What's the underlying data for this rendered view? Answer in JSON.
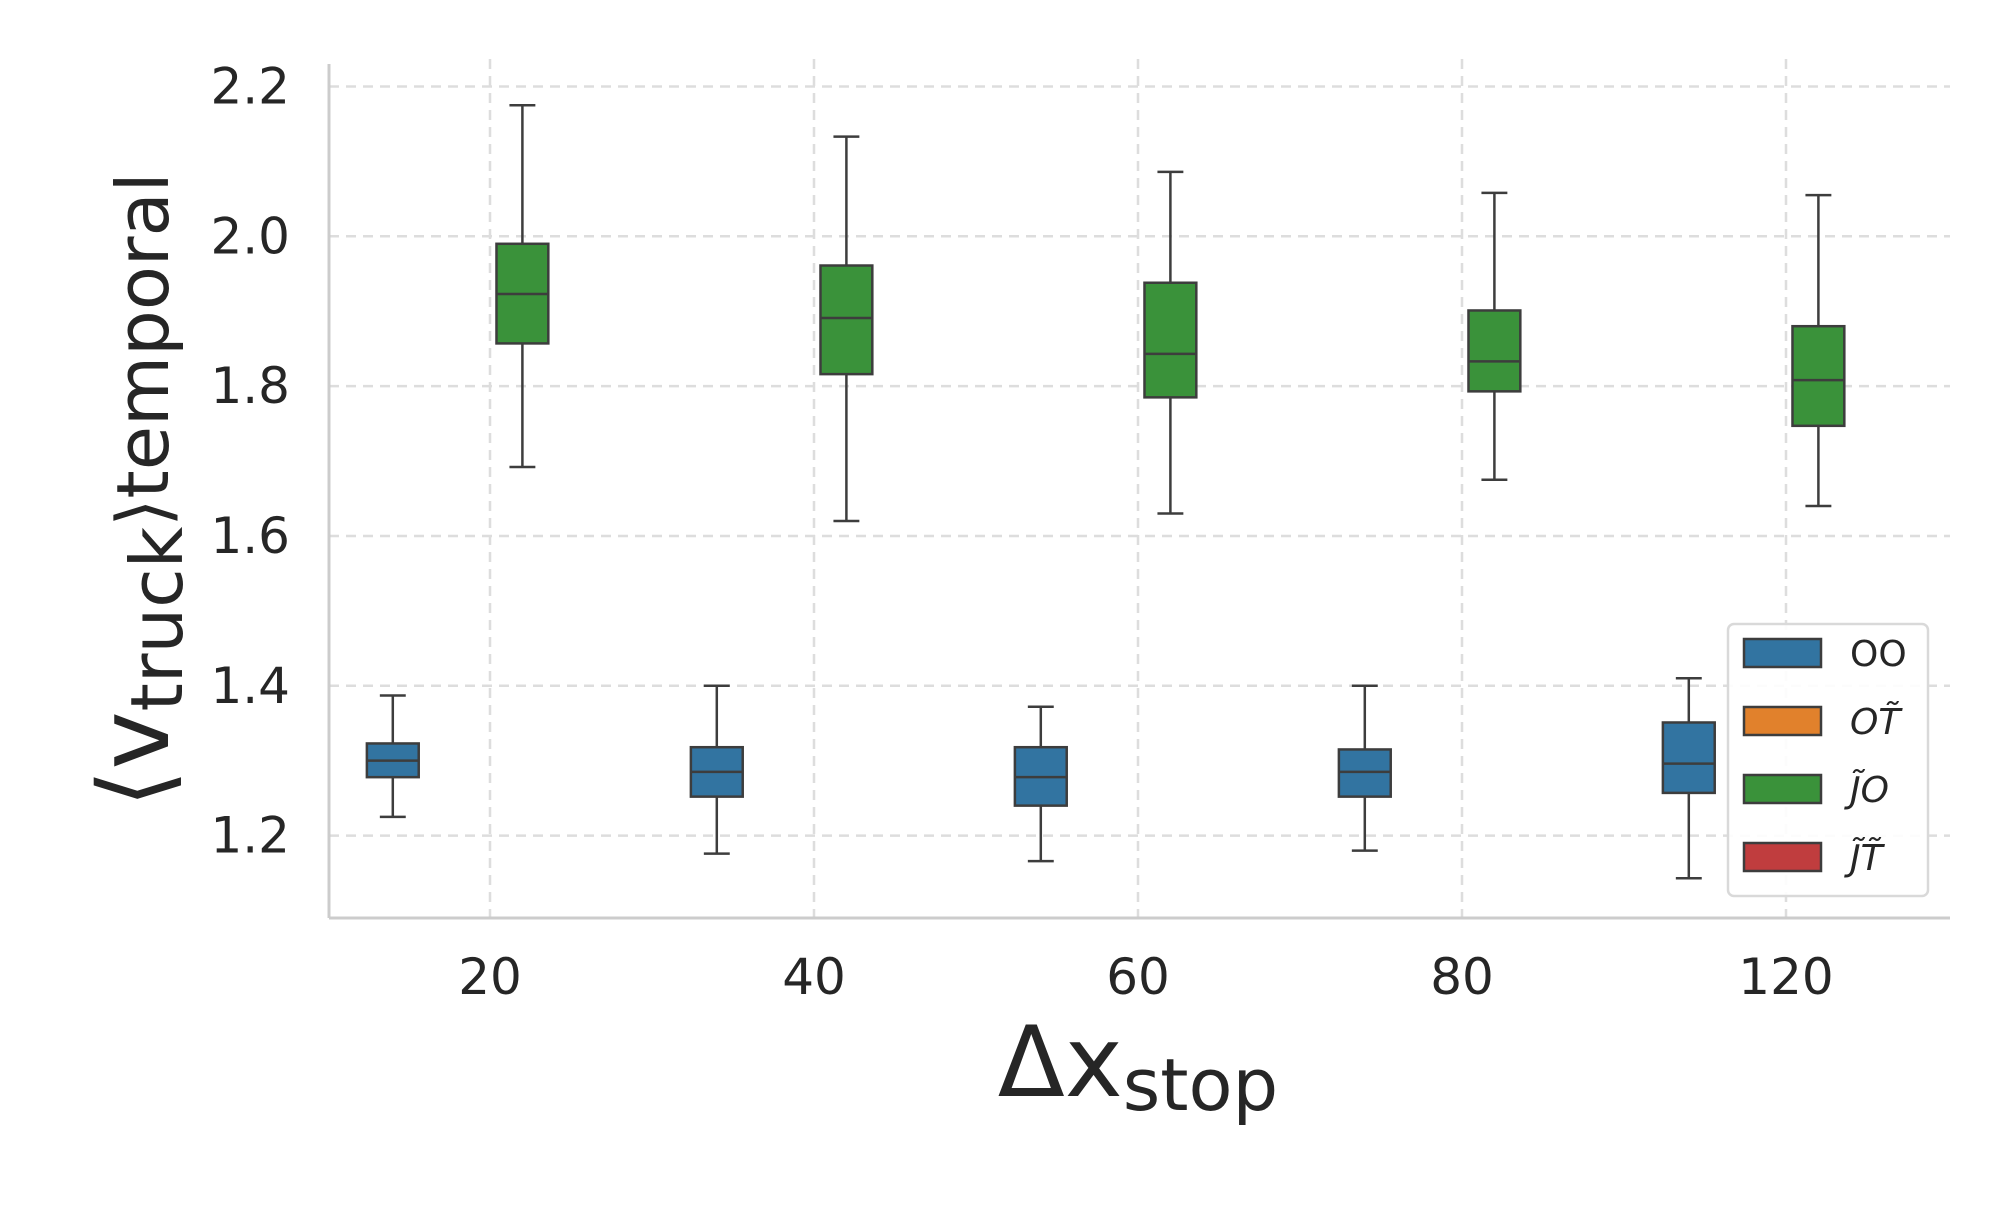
{
  "chart_data": {
    "type": "box",
    "title": "",
    "xlabel": {
      "main": "Δx",
      "subscript": "stop"
    },
    "ylabel": {
      "main": "⟨v",
      "subscript": "truck",
      "suffix": "⟩temporal"
    },
    "categories": [
      "20",
      "40",
      "60",
      "80",
      "120"
    ],
    "ylim": [
      1.09,
      2.23
    ],
    "yticks": [
      1.2,
      1.4,
      1.6,
      1.8,
      2.0,
      2.2
    ],
    "ytick_labels": [
      "1.2",
      "1.4",
      "1.6",
      "1.8",
      "2.0",
      "2.2"
    ],
    "grid": true,
    "legend_position": "bottom-right",
    "legend": [
      {
        "label": "OO",
        "color": "#3274a1"
      },
      {
        "label": "OT̃",
        "color": "#e1812c"
      },
      {
        "label": "J̃O",
        "color": "#3a923a"
      },
      {
        "label": "J̃T̃",
        "color": "#c03d3e"
      }
    ],
    "series": [
      {
        "name": "OO",
        "color": "#3274a1",
        "boxes": [
          {
            "whisker_low": 1.225,
            "q1": 1.278,
            "median": 1.3,
            "q3": 1.323,
            "whisker_high": 1.387
          },
          {
            "whisker_low": 1.176,
            "q1": 1.252,
            "median": 1.285,
            "q3": 1.318,
            "whisker_high": 1.4
          },
          {
            "whisker_low": 1.166,
            "q1": 1.24,
            "median": 1.278,
            "q3": 1.318,
            "whisker_high": 1.372
          },
          {
            "whisker_low": 1.18,
            "q1": 1.252,
            "median": 1.285,
            "q3": 1.315,
            "whisker_high": 1.4
          },
          {
            "whisker_low": 1.143,
            "q1": 1.257,
            "median": 1.296,
            "q3": 1.351,
            "whisker_high": 1.41
          }
        ]
      },
      {
        "name": "OT̃",
        "color": "#e1812c",
        "boxes": []
      },
      {
        "name": "J̃O",
        "color": "#3a923a",
        "boxes": [
          {
            "whisker_low": 1.692,
            "q1": 1.857,
            "median": 1.923,
            "q3": 1.99,
            "whisker_high": 2.175
          },
          {
            "whisker_low": 1.62,
            "q1": 1.816,
            "median": 1.891,
            "q3": 1.961,
            "whisker_high": 2.133
          },
          {
            "whisker_low": 1.63,
            "q1": 1.785,
            "median": 1.843,
            "q3": 1.938,
            "whisker_high": 2.086
          },
          {
            "whisker_low": 1.675,
            "q1": 1.793,
            "median": 1.833,
            "q3": 1.901,
            "whisker_high": 2.058
          },
          {
            "whisker_low": 1.64,
            "q1": 1.747,
            "median": 1.808,
            "q3": 1.88,
            "whisker_high": 2.055
          }
        ]
      },
      {
        "name": "J̃T̃",
        "color": "#c03d3e",
        "boxes": []
      }
    ]
  }
}
